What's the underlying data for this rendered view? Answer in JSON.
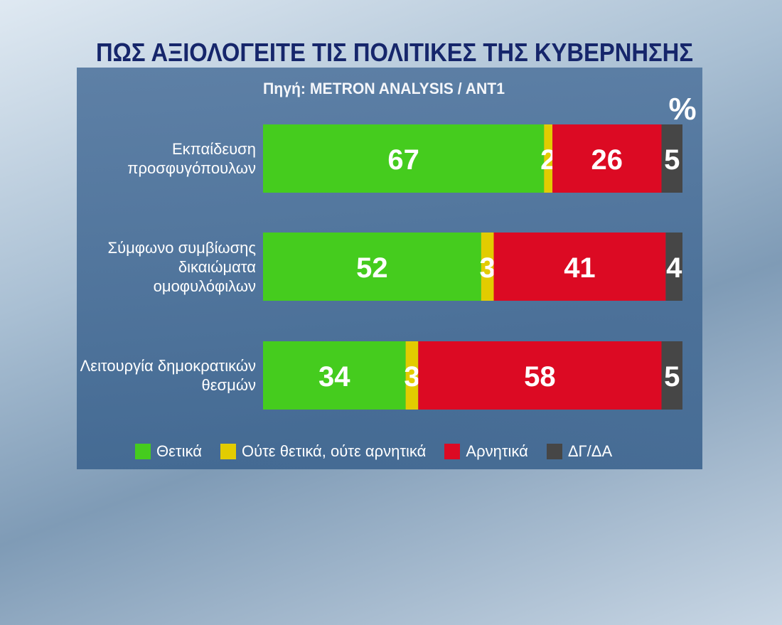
{
  "chart_data": {
    "type": "bar",
    "orientation": "horizontal",
    "stacked": true,
    "title": "ΠΩΣ ΑΞΙΟΛΟΓΕΙΤΕ ΤΙΣ ΠΟΛΙΤΙΚΕΣ ΤΗΣ ΚΥΒΕΡΝΗΣΗΣ",
    "subtitle": "Πηγή: METRON ANALYSIS / ANT1",
    "unit": "%",
    "categories": [
      "Εκπαίδευση προσφυγόπουλων",
      "Σύμφωνο συμβίωσης δικαιώματα ομοφυλόφιλων",
      "Λειτουργία δημοκρατικών θεσμών"
    ],
    "xlim": [
      0,
      100
    ],
    "series": [
      {
        "name": "Θετικά",
        "color": "#45cc1e",
        "values": [
          67,
          52,
          34
        ]
      },
      {
        "name": "Ούτε θετικά, ούτε αρνητικά",
        "color": "#e2cc00",
        "values": [
          2,
          3,
          3
        ]
      },
      {
        "name": "Αρνητικά",
        "color": "#dc0a23",
        "values": [
          26,
          41,
          58
        ]
      },
      {
        "name": "ΔΓ/ΔΑ",
        "color": "#464646",
        "values": [
          5,
          4,
          5
        ]
      }
    ]
  }
}
